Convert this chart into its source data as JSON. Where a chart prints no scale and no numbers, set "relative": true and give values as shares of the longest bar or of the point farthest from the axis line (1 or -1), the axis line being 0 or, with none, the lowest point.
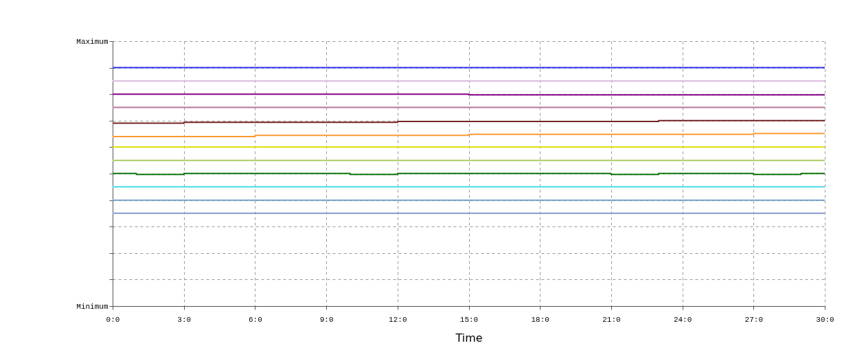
{
  "chart_data": {
    "type": "step",
    "xlabel": "Time",
    "relative": true,
    "annotations": [
      "Maximum",
      "Minimum"
    ],
    "categories": [
      "0:0",
      null,
      null,
      "3:0",
      null,
      null,
      "6:0",
      null,
      null,
      "9:0",
      null,
      null,
      "12:0",
      null,
      null,
      "15:0",
      null,
      null,
      "18:0",
      null,
      null,
      "21:0",
      null,
      null,
      "24:0",
      null,
      null,
      "27:0",
      null,
      null,
      "30:0"
    ],
    "grid": true,
    "series": [
      {
        "color": "#3333ee",
        "values": [
          1,
          1,
          1,
          1,
          1,
          1,
          1,
          1,
          1,
          1,
          1,
          1,
          1,
          1,
          1,
          1,
          1,
          1,
          1,
          1,
          1,
          1,
          1,
          1,
          1,
          1,
          1,
          1,
          1,
          1,
          1
        ]
      },
      {
        "color": "#ddbbdd",
        "values": [
          0.944,
          0.944,
          0.944,
          0.944,
          0.944,
          0.944,
          0.944,
          0.944,
          0.944,
          0.944,
          0.944,
          0.944,
          0.944,
          0.944,
          0.944,
          0.944,
          0.944,
          0.944,
          0.944,
          0.944,
          0.944,
          0.944,
          0.944,
          0.944,
          0.944,
          0.944,
          0.944,
          0.944,
          0.944,
          0.944,
          0.944
        ]
      },
      {
        "color": "#880088",
        "values": [
          0.889,
          0.889,
          0.889,
          0.889,
          0.889,
          0.889,
          0.889,
          0.889,
          0.889,
          0.889,
          0.889,
          0.889,
          0.889,
          0.889,
          0.889,
          0.886,
          0.886,
          0.886,
          0.886,
          0.886,
          0.886,
          0.886,
          0.886,
          0.886,
          0.886,
          0.886,
          0.886,
          0.886,
          0.886,
          0.886,
          0.886
        ]
      },
      {
        "color": "#bb7799",
        "values": [
          0.833,
          0.833,
          0.833,
          0.833,
          0.833,
          0.833,
          0.833,
          0.833,
          0.833,
          0.833,
          0.833,
          0.833,
          0.833,
          0.833,
          0.833,
          0.833,
          0.833,
          0.833,
          0.833,
          0.833,
          0.833,
          0.833,
          0.833,
          0.833,
          0.833,
          0.833,
          0.833,
          0.833,
          0.833,
          0.833,
          0.833
        ]
      },
      {
        "color": "#772222",
        "values": [
          0.767,
          0.767,
          0.767,
          0.771,
          0.771,
          0.771,
          0.771,
          0.771,
          0.771,
          0.771,
          0.771,
          0.771,
          0.774,
          0.774,
          0.774,
          0.774,
          0.774,
          0.774,
          0.774,
          0.774,
          0.774,
          0.774,
          0.774,
          0.778,
          0.778,
          0.778,
          0.778,
          0.778,
          0.778,
          0.778,
          0.778
        ]
      },
      {
        "color": "#ff9933",
        "values": [
          0.711,
          0.711,
          0.711,
          0.711,
          0.711,
          0.711,
          0.716,
          0.716,
          0.716,
          0.716,
          0.716,
          0.716,
          0.716,
          0.716,
          0.716,
          0.72,
          0.72,
          0.72,
          0.72,
          0.72,
          0.72,
          0.72,
          0.72,
          0.72,
          0.72,
          0.72,
          0.72,
          0.724,
          0.724,
          0.724,
          0.724
        ]
      },
      {
        "color": "#dddd00",
        "values": [
          0.667,
          0.667,
          0.667,
          0.667,
          0.667,
          0.667,
          0.667,
          0.667,
          0.667,
          0.667,
          0.667,
          0.667,
          0.667,
          0.667,
          0.667,
          0.667,
          0.667,
          0.667,
          0.667,
          0.667,
          0.667,
          0.667,
          0.667,
          0.667,
          0.667,
          0.667,
          0.667,
          0.667,
          0.667,
          0.667,
          0.667
        ]
      },
      {
        "color": "#aacc66",
        "values": [
          0.611,
          0.611,
          0.611,
          0.611,
          0.611,
          0.611,
          0.611,
          0.611,
          0.611,
          0.611,
          0.611,
          0.611,
          0.611,
          0.611,
          0.611,
          0.611,
          0.611,
          0.611,
          0.611,
          0.611,
          0.611,
          0.611,
          0.611,
          0.611,
          0.611,
          0.611,
          0.611,
          0.611,
          0.611,
          0.611,
          0.611
        ]
      },
      {
        "color": "#117711",
        "values": [
          0.556,
          0.552,
          0.552,
          0.556,
          0.556,
          0.556,
          0.556,
          0.556,
          0.556,
          0.556,
          0.552,
          0.552,
          0.556,
          0.556,
          0.556,
          0.556,
          0.556,
          0.556,
          0.556,
          0.556,
          0.556,
          0.552,
          0.552,
          0.556,
          0.556,
          0.556,
          0.556,
          0.552,
          0.552,
          0.556,
          0.556
        ]
      },
      {
        "color": "#44ddee",
        "values": [
          0.5,
          0.5,
          0.5,
          0.5,
          0.5,
          0.5,
          0.5,
          0.5,
          0.5,
          0.5,
          0.5,
          0.5,
          0.5,
          0.5,
          0.5,
          0.5,
          0.5,
          0.5,
          0.5,
          0.5,
          0.5,
          0.5,
          0.5,
          0.5,
          0.5,
          0.5,
          0.5,
          0.5,
          0.5,
          0.5,
          0.5
        ]
      },
      {
        "color": "#77a0cc",
        "values": [
          0.444,
          0.444,
          0.444,
          0.444,
          0.444,
          0.444,
          0.444,
          0.444,
          0.444,
          0.444,
          0.444,
          0.444,
          0.444,
          0.444,
          0.444,
          0.444,
          0.444,
          0.444,
          0.444,
          0.444,
          0.444,
          0.444,
          0.444,
          0.444,
          0.444,
          0.444,
          0.444,
          0.444,
          0.444,
          0.444,
          0.444
        ]
      },
      {
        "color": "#8899cc",
        "values": [
          0.389,
          0.389,
          0.389,
          0.389,
          0.389,
          0.389,
          0.389,
          0.389,
          0.389,
          0.389,
          0.389,
          0.389,
          0.389,
          0.389,
          0.389,
          0.389,
          0.389,
          0.389,
          0.389,
          0.389,
          0.389,
          0.389,
          0.389,
          0.389,
          0.389,
          0.389,
          0.389,
          0.389,
          0.389,
          0.389,
          0.389
        ]
      }
    ]
  }
}
